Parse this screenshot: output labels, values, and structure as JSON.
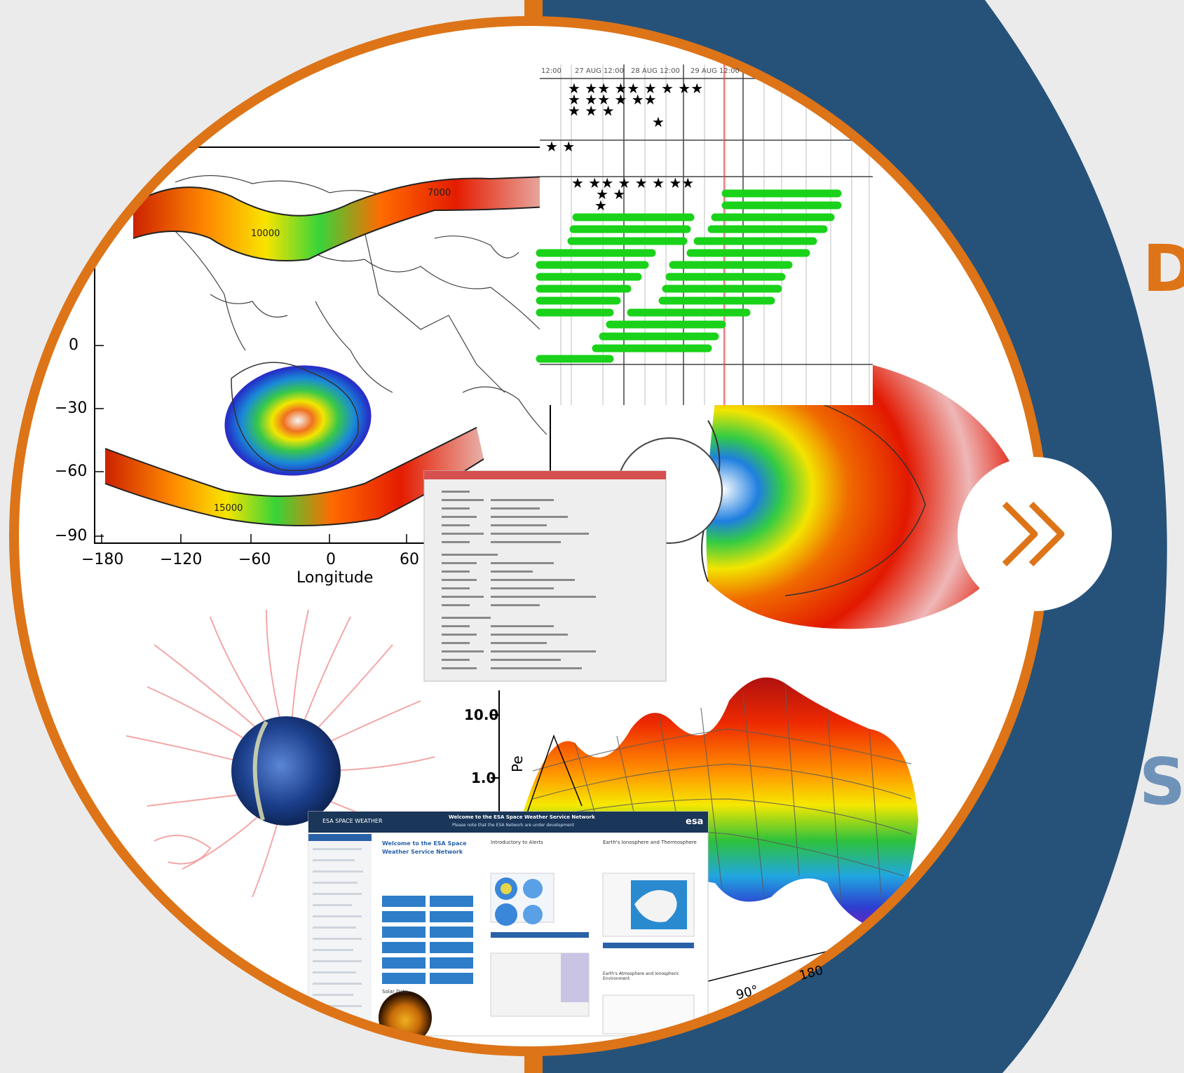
{
  "colors": {
    "background": "#ebebeb",
    "navy_band": "#26527a",
    "orange_ring": "#dd7418",
    "letter_d": "#dd7418",
    "letter_s": "#6f92b8"
  },
  "right_panel": {
    "letter_top": "D",
    "letter_bottom": "S",
    "next_button": {
      "icon": "double-chevron-right-icon",
      "glyph": "»"
    }
  },
  "collage": {
    "contour_map": {
      "y_ticks": [
        "0",
        "−30",
        "−60",
        "−90"
      ],
      "x_ticks": [
        "−180",
        "−120",
        "−60",
        "0",
        "60"
      ],
      "xlabel": "Longitude",
      "contour_labels": [
        "10000",
        "15000",
        "7000"
      ]
    },
    "timeline": {
      "date_headers": [
        "12:00",
        "27 AUG 12:00",
        "28 AUG 12:00",
        "29 AUG 12:00"
      ]
    },
    "log_panel": {
      "y_ticks": [
        "10.0",
        "1.0"
      ],
      "axis_label": "Pe",
      "surface_axis_labels": [
        "90°",
        "180"
      ]
    },
    "website": {
      "header_left": "ESA SPACE WEATHER",
      "header_center_line1": "Welcome to the ESA Space Weather Service Network",
      "header_center_line2": "Please note that the ESA Network are under development",
      "logo": "esa",
      "welcome_title": "Welcome to the ESA Space Weather Service Network",
      "col2_title": "Introductory to Alerts",
      "col3_title": "Earth's Ionosphere and Thermosphere",
      "col3_subtitle": "Earth's Atmosphere and Ionospheric Environment",
      "data_heading": "Solar Data"
    }
  }
}
